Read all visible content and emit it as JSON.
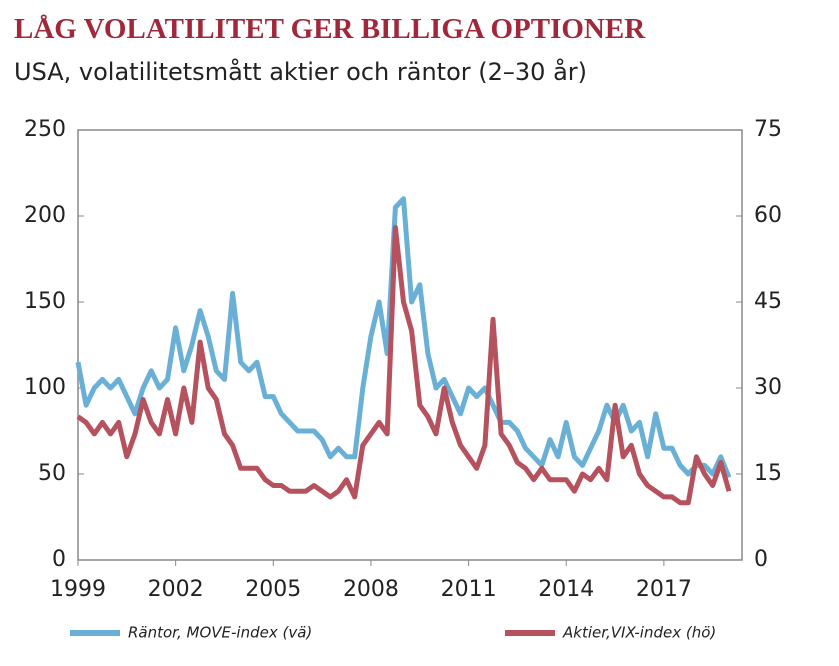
{
  "chart_data": {
    "type": "line",
    "title": "LÅG VOLATILITET GER BILLIGA OPTIONER",
    "subtitle": "USA, volatilitetsmått aktier och räntor (2–30 år)",
    "x": [
      1999,
      1999.25,
      1999.5,
      1999.75,
      2000,
      2000.25,
      2000.5,
      2000.75,
      2001,
      2001.25,
      2001.5,
      2001.75,
      2002,
      2002.25,
      2002.5,
      2002.75,
      2003,
      2003.25,
      2003.5,
      2003.75,
      2004,
      2004.25,
      2004.5,
      2004.75,
      2005,
      2005.25,
      2005.5,
      2005.75,
      2006,
      2006.25,
      2006.5,
      2006.75,
      2007,
      2007.25,
      2007.5,
      2007.75,
      2008,
      2008.25,
      2008.5,
      2008.75,
      2009,
      2009.25,
      2009.5,
      2009.75,
      2010,
      2010.25,
      2010.5,
      2010.75,
      2011,
      2011.25,
      2011.5,
      2011.75,
      2012,
      2012.25,
      2012.5,
      2012.75,
      2013,
      2013.25,
      2013.5,
      2013.75,
      2014,
      2014.25,
      2014.5,
      2014.75,
      2015,
      2015.25,
      2015.5,
      2015.75,
      2016,
      2016.25,
      2016.5,
      2016.75,
      2017,
      2017.25,
      2017.5,
      2017.75,
      2018,
      2018.25,
      2018.5,
      2018.75,
      2019
    ],
    "series": [
      {
        "name": "Räntor, MOVE-index (vä)",
        "color": "#6ab0d6",
        "axis": "y",
        "values": [
          115,
          90,
          100,
          105,
          100,
          105,
          95,
          85,
          100,
          110,
          100,
          105,
          135,
          110,
          125,
          145,
          130,
          110,
          105,
          155,
          115,
          110,
          115,
          95,
          95,
          85,
          80,
          75,
          75,
          75,
          70,
          60,
          65,
          60,
          60,
          100,
          130,
          150,
          120,
          205,
          210,
          150,
          160,
          120,
          100,
          105,
          95,
          85,
          100,
          95,
          100,
          90,
          80,
          80,
          75,
          65,
          60,
          55,
          70,
          60,
          80,
          60,
          55,
          65,
          75,
          90,
          80,
          90,
          75,
          80,
          60,
          85,
          65,
          65,
          55,
          50,
          55,
          55,
          50,
          60,
          48
        ]
      },
      {
        "name": "Aktier,VIX-index (hö)",
        "color": "#b5525e",
        "axis": "y2",
        "values": [
          25,
          24,
          22,
          24,
          22,
          24,
          18,
          22,
          28,
          24,
          22,
          28,
          22,
          30,
          24,
          38,
          30,
          28,
          22,
          20,
          16,
          16,
          16,
          14,
          13,
          13,
          12,
          12,
          12,
          13,
          12,
          11,
          12,
          14,
          11,
          20,
          22,
          24,
          22,
          58,
          45,
          40,
          27,
          25,
          22,
          30,
          24,
          20,
          18,
          16,
          20,
          42,
          22,
          20,
          17,
          16,
          14,
          16,
          14,
          14,
          14,
          12,
          15,
          14,
          16,
          14,
          27,
          18,
          20,
          15,
          13,
          12,
          11,
          11,
          10,
          10,
          18,
          15,
          13,
          17,
          12
        ]
      }
    ],
    "xlim": [
      1999,
      2019.4
    ],
    "xticks": [
      1999,
      2002,
      2005,
      2008,
      2011,
      2014,
      2017
    ],
    "ylim": [
      0,
      250
    ],
    "yticks": [
      0,
      50,
      100,
      150,
      200,
      250
    ],
    "y2lim": [
      0,
      75
    ],
    "y2ticks": [
      0,
      15,
      30,
      45,
      60,
      75
    ]
  }
}
